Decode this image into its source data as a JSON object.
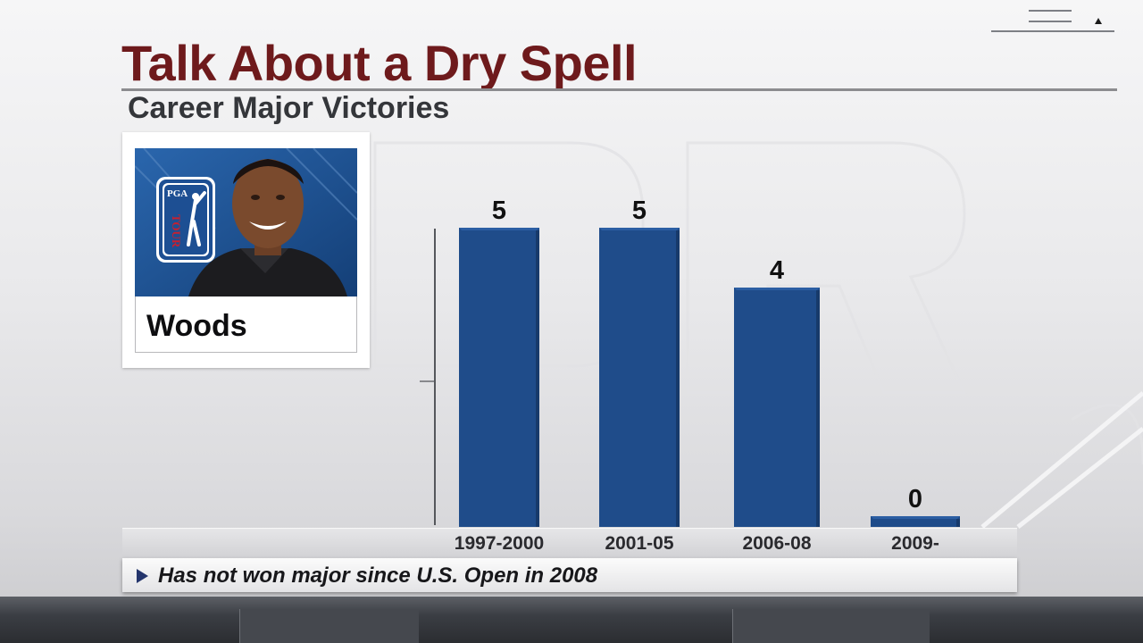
{
  "header": {
    "title": "Talk About a Dry Spell",
    "subtitle": "Career Major Victories"
  },
  "player": {
    "name": "Woods",
    "logo_text_top": "PGA",
    "logo_text_bottom": "TOUR"
  },
  "note": {
    "text": "Has not won major since U.S. Open in 2008"
  },
  "colors": {
    "title": "#6e1a1c",
    "bar": "#1f4c8a",
    "bar_side": "#173a6b",
    "note_arrow": "#24356c"
  },
  "chart_data": {
    "type": "bar",
    "title": "Talk About a Dry Spell",
    "subtitle": "Career Major Victories",
    "categories": [
      "1997-2000",
      "2001-05",
      "2006-08",
      "2009-"
    ],
    "values": [
      5,
      5,
      4,
      0
    ],
    "xlabel": "",
    "ylabel": "",
    "ylim": [
      0,
      5
    ],
    "grid": false,
    "legend": "none"
  }
}
